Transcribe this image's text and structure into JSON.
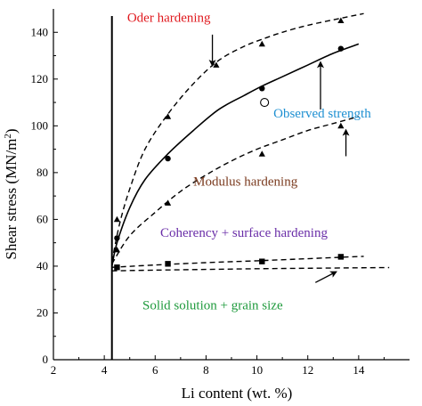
{
  "chart_data": {
    "type": "line",
    "xlabel": "Li content (wt. %)",
    "ylabel": "Shear stress (MN/m",
    "ylabel_superscript": "2",
    "ylabel_close": ")",
    "xlim": [
      2,
      16
    ],
    "ylim": [
      0,
      150
    ],
    "xticks": [
      2,
      4,
      6,
      8,
      10,
      12,
      14
    ],
    "yticks": [
      0,
      20,
      40,
      60,
      80,
      100,
      120,
      140
    ],
    "grid": false,
    "vertical_line_x": 4.3,
    "series": [
      {
        "style": "dashed",
        "marker": "triangle",
        "color": "#000000",
        "curve_x": [
          4.3,
          4.6,
          5.0,
          5.6,
          6.5,
          7.5,
          8.5,
          9.5,
          10.2,
          11.0,
          12.0,
          13.3,
          14.2
        ],
        "curve_y": [
          42,
          58,
          73,
          90,
          105,
          118,
          128,
          134,
          137,
          140,
          143,
          146,
          148
        ],
        "points_x": [
          4.5,
          6.5,
          8.4,
          10.2,
          13.3
        ],
        "points_y": [
          60,
          104,
          126,
          135,
          145
        ]
      },
      {
        "style": "solid",
        "marker": "circle",
        "color": "#000000",
        "curve_x": [
          4.3,
          4.5,
          5.0,
          5.6,
          6.5,
          7.5,
          8.5,
          9.5,
          10.2,
          11.0,
          12.0,
          13.0,
          14.0
        ],
        "curve_y": [
          40,
          50,
          65,
          77,
          88,
          98,
          107,
          113,
          117,
          121,
          126,
          131,
          135
        ],
        "points_x": [
          4.5,
          6.5,
          10.2,
          13.3
        ],
        "points_y": [
          52,
          86,
          116,
          133
        ]
      },
      {
        "style": "dashed",
        "marker": "triangle",
        "color": "#000000",
        "curve_x": [
          4.3,
          5.0,
          6.0,
          7.0,
          8.0,
          9.0,
          10.0,
          11.0,
          12.0,
          13.0,
          14.0
        ],
        "curve_y": [
          41,
          53,
          63,
          72,
          79,
          85,
          90,
          94,
          98,
          101,
          104
        ],
        "points_x": [
          4.5,
          6.5,
          10.2,
          13.3
        ],
        "points_y": [
          47,
          67,
          88,
          100
        ]
      },
      {
        "style": "dashed",
        "marker": "square",
        "color": "#000000",
        "curve_x": [
          4.3,
          6.0,
          8.0,
          10.0,
          12.0,
          13.3,
          14.2
        ],
        "curve_y": [
          39.5,
          40.5,
          41.5,
          42.3,
          43.2,
          43.8,
          44.2
        ],
        "points_x": [
          4.5,
          6.5,
          10.2,
          13.3
        ],
        "points_y": [
          39.5,
          41,
          42,
          44
        ]
      },
      {
        "style": "dashed",
        "marker": "none",
        "color": "#000000",
        "curve_x": [
          4.3,
          6.0,
          8.0,
          10.0,
          12.0,
          14.0,
          15.2
        ],
        "curve_y": [
          38,
          38.3,
          38.6,
          38.9,
          39.1,
          39.3,
          39.4
        ],
        "points_x": [],
        "points_y": []
      }
    ],
    "open_point": {
      "x": 10.3,
      "y": 110
    },
    "annotations": [
      {
        "text": "Oder hardening",
        "color": "#e0191e",
        "x": 4.9,
        "y": 144.5,
        "arrow_from": [
          8.25,
          139
        ],
        "arrow_to": [
          8.25,
          126
        ]
      },
      {
        "text": "Observed strength",
        "color": "#1e90d2",
        "x": 10.65,
        "y": 103.5,
        "arrow_from": [
          12.5,
          107
        ],
        "arrow_to": [
          12.5,
          127
        ]
      },
      {
        "text": "Modulus hardening",
        "color": "#7a3a1e",
        "x": 7.5,
        "y": 74.5,
        "arrow_from": [
          13.5,
          87
        ],
        "arrow_to": [
          13.5,
          98
        ]
      },
      {
        "text": "Coherency + surface hardening",
        "color": "#6a2ea8",
        "x": 6.2,
        "y": 52.5,
        "arrow_from": null,
        "arrow_to": null
      },
      {
        "text": "Solid solution + grain size",
        "color": "#1e9a3c",
        "x": 5.5,
        "y": 21.5,
        "arrow_from": [
          12.3,
          33
        ],
        "arrow_to": [
          13.1,
          37.5
        ]
      }
    ]
  }
}
